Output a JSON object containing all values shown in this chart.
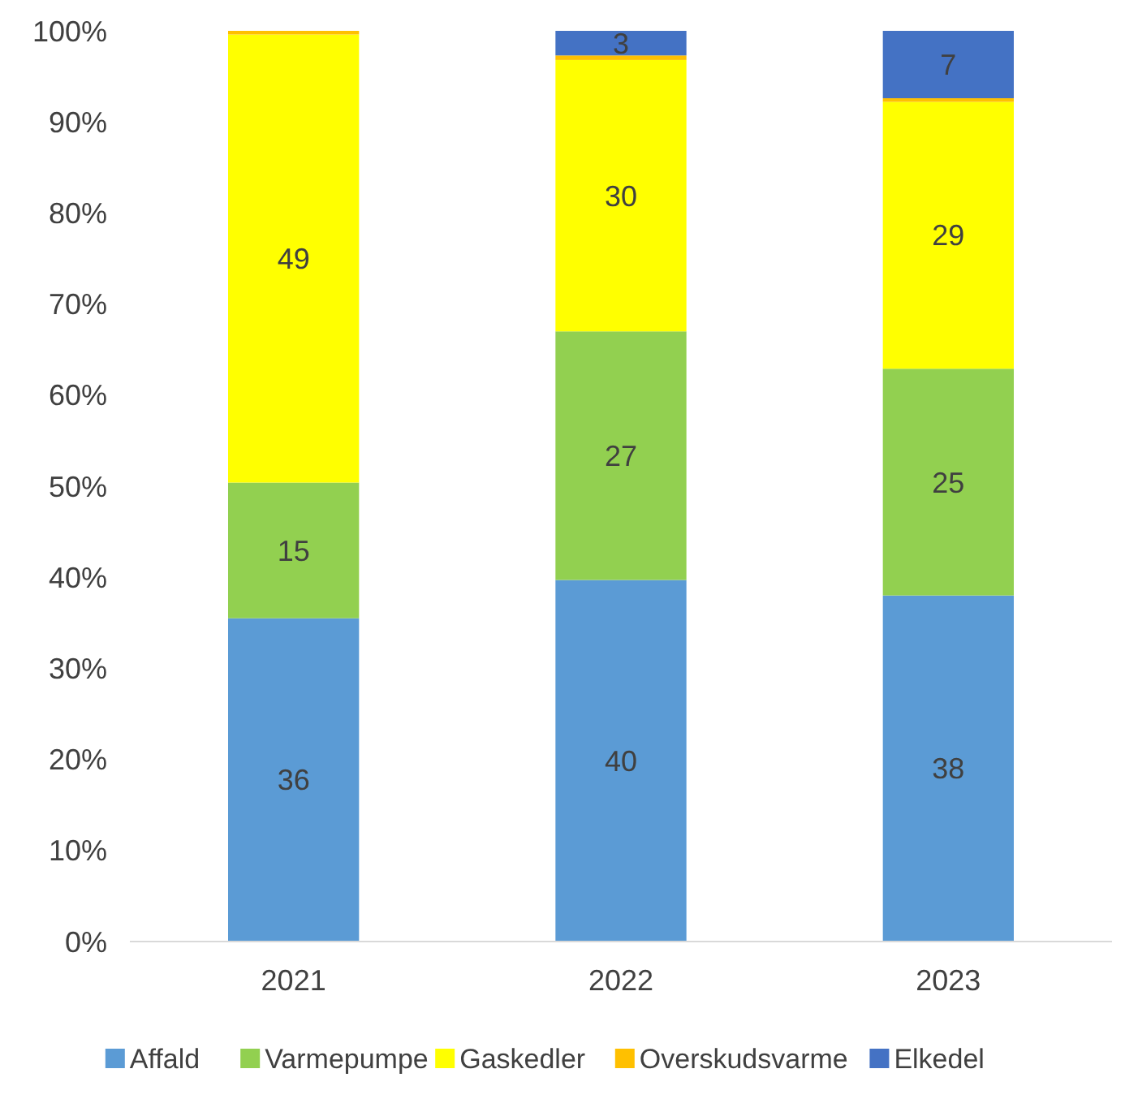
{
  "chart_data": {
    "type": "bar",
    "stacked": true,
    "categories": [
      "2021",
      "2022",
      "2023"
    ],
    "series": [
      {
        "name": "Affald",
        "color": "#5b9bd5",
        "values": [
          35.5,
          39.7,
          38.0
        ],
        "value_labels": [
          "36",
          "40",
          "38"
        ]
      },
      {
        "name": "Varmepumpe",
        "color": "#92d050",
        "values": [
          14.9,
          27.3,
          24.9
        ],
        "value_labels": [
          "15",
          "27",
          "25"
        ]
      },
      {
        "name": "Gaskedler",
        "color": "#ffff00",
        "values": [
          49.2,
          29.8,
          29.3
        ],
        "value_labels": [
          "49",
          "30",
          "29"
        ]
      },
      {
        "name": "Overskudsvarme",
        "color": "#ffc000",
        "values": [
          0.4,
          0.5,
          0.4
        ],
        "value_labels": [
          null,
          null,
          null
        ]
      },
      {
        "name": "Elkedel",
        "color": "#4472c4",
        "values": [
          null,
          2.7,
          7.4
        ],
        "value_labels": [
          null,
          "3",
          "7"
        ]
      }
    ],
    "ylim": [
      0,
      100
    ],
    "yticks": [
      {
        "value": 0,
        "label": "0%"
      },
      {
        "value": 10,
        "label": "10%"
      },
      {
        "value": 20,
        "label": "20%"
      },
      {
        "value": 30,
        "label": "30%"
      },
      {
        "value": 40,
        "label": "40%"
      },
      {
        "value": 50,
        "label": "50%"
      },
      {
        "value": 60,
        "label": "60%"
      },
      {
        "value": 70,
        "label": "70%"
      },
      {
        "value": 80,
        "label": "80%"
      },
      {
        "value": 90,
        "label": "90%"
      },
      {
        "value": 100,
        "label": "100%"
      }
    ],
    "legend": "bottom"
  }
}
